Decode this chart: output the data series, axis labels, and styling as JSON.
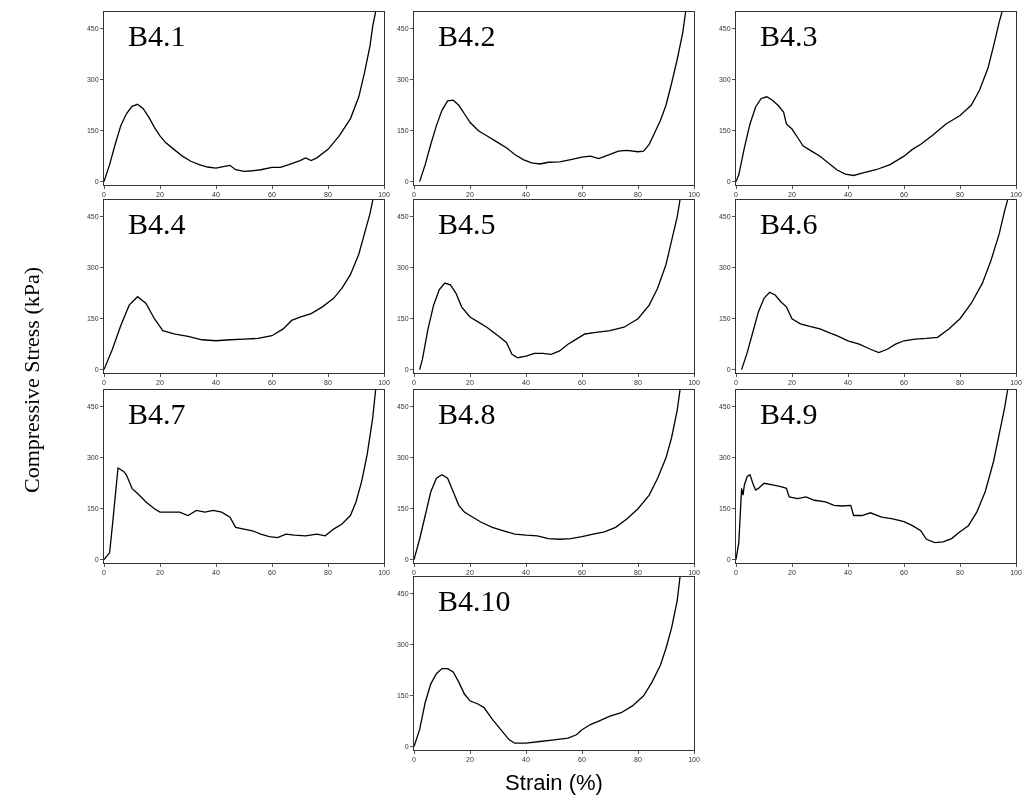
{
  "chart_data": [
    {
      "type": "line",
      "title": "B4.1",
      "xlim": [
        0,
        100
      ],
      "ylim": [
        -10,
        500
      ],
      "xticks": [
        0,
        20,
        40,
        60,
        80,
        100
      ],
      "yticks": [
        0,
        150,
        300,
        450
      ],
      "series": [
        {
          "color": "#000000",
          "x": [
            0,
            2,
            4,
            6,
            8,
            10,
            12,
            14,
            16,
            18,
            20,
            22,
            25,
            28,
            31,
            34,
            37,
            40,
            43,
            45,
            47,
            50,
            53,
            56,
            60,
            63,
            66,
            70,
            72,
            74,
            76,
            80,
            84,
            88,
            91,
            93,
            95,
            96,
            97
          ],
          "values": [
            0,
            50,
            110,
            165,
            200,
            222,
            228,
            215,
            190,
            160,
            135,
            115,
            95,
            75,
            60,
            50,
            43,
            40,
            45,
            48,
            35,
            30,
            32,
            35,
            42,
            42,
            50,
            62,
            70,
            62,
            70,
            95,
            135,
            185,
            250,
            320,
            400,
            460,
            500
          ]
        }
      ]
    },
    {
      "type": "line",
      "title": "B4.2",
      "xlim": [
        0,
        100
      ],
      "ylim": [
        -10,
        500
      ],
      "xticks": [
        0,
        20,
        40,
        60,
        80,
        100
      ],
      "yticks": [
        0,
        150,
        300,
        450
      ],
      "series": [
        {
          "color": "#000000",
          "x": [
            2,
            4,
            6,
            8,
            10,
            12,
            14,
            16,
            18,
            20,
            23,
            26,
            30,
            33,
            36,
            39,
            42,
            45,
            48,
            52,
            56,
            60,
            63,
            66,
            70,
            73,
            76,
            80,
            82,
            84,
            86,
            88,
            90,
            92,
            94,
            96,
            97
          ],
          "values": [
            0,
            50,
            110,
            165,
            210,
            238,
            240,
            225,
            200,
            175,
            150,
            135,
            115,
            100,
            80,
            65,
            55,
            52,
            57,
            58,
            65,
            72,
            75,
            68,
            80,
            90,
            92,
            88,
            90,
            110,
            145,
            180,
            225,
            290,
            360,
            440,
            500
          ]
        }
      ]
    },
    {
      "type": "line",
      "title": "B4.3",
      "xlim": [
        0,
        100
      ],
      "ylim": [
        -10,
        500
      ],
      "xticks": [
        0,
        20,
        40,
        60,
        80,
        100
      ],
      "yticks": [
        0,
        150,
        300,
        450
      ],
      "series": [
        {
          "color": "#000000",
          "x": [
            0,
            1,
            3,
            5,
            7,
            9,
            11,
            13,
            15,
            17,
            18,
            20,
            22,
            24,
            27,
            30,
            33,
            36,
            39,
            42,
            45,
            50,
            55,
            60,
            63,
            66,
            70,
            75,
            80,
            84,
            87,
            90,
            92,
            94,
            95
          ],
          "values": [
            0,
            20,
            100,
            170,
            220,
            245,
            250,
            240,
            225,
            205,
            170,
            155,
            130,
            105,
            90,
            75,
            55,
            35,
            22,
            18,
            25,
            35,
            50,
            75,
            95,
            110,
            135,
            170,
            195,
            225,
            270,
            335,
            400,
            470,
            500
          ]
        }
      ]
    },
    {
      "type": "line",
      "title": "B4.4",
      "ylabel": "Compressive Stress (kPa)",
      "xlim": [
        0,
        100
      ],
      "ylim": [
        -10,
        500
      ],
      "xticks": [
        0,
        20,
        40,
        60,
        80,
        100
      ],
      "yticks": [
        0,
        150,
        300,
        450
      ],
      "series": [
        {
          "color": "#000000",
          "x": [
            0,
            3,
            6,
            9,
            12,
            15,
            18,
            21,
            25,
            30,
            35,
            40,
            45,
            50,
            55,
            60,
            64,
            67,
            70,
            74,
            78,
            82,
            85,
            88,
            91,
            93,
            95,
            96
          ],
          "values": [
            0,
            60,
            130,
            190,
            215,
            195,
            150,
            115,
            105,
            98,
            88,
            85,
            88,
            90,
            92,
            100,
            120,
            145,
            155,
            165,
            185,
            210,
            240,
            280,
            340,
            400,
            460,
            500
          ]
        }
      ]
    },
    {
      "type": "line",
      "title": "B4.5",
      "xlim": [
        0,
        100
      ],
      "ylim": [
        -10,
        500
      ],
      "xticks": [
        0,
        20,
        40,
        60,
        80,
        100
      ],
      "yticks": [
        0,
        150,
        300,
        450
      ],
      "series": [
        {
          "color": "#000000",
          "x": [
            2,
            3,
            5,
            7,
            9,
            11,
            13,
            15,
            17,
            20,
            23,
            26,
            30,
            33,
            35,
            37,
            40,
            43,
            46,
            49,
            52,
            55,
            58,
            61,
            65,
            70,
            75,
            80,
            84,
            87,
            90,
            92,
            94,
            95
          ],
          "values": [
            0,
            30,
            120,
            190,
            235,
            255,
            250,
            225,
            185,
            155,
            140,
            125,
            100,
            80,
            45,
            35,
            40,
            48,
            48,
            45,
            55,
            75,
            90,
            105,
            110,
            115,
            125,
            150,
            190,
            240,
            310,
            380,
            450,
            500
          ]
        }
      ]
    },
    {
      "type": "line",
      "title": "B4.6",
      "xlim": [
        0,
        100
      ],
      "ylim": [
        -10,
        500
      ],
      "xticks": [
        0,
        20,
        40,
        60,
        80,
        100
      ],
      "yticks": [
        0,
        150,
        300,
        450
      ],
      "series": [
        {
          "color": "#000000",
          "x": [
            2,
            4,
            6,
            8,
            10,
            12,
            14,
            16,
            18,
            20,
            23,
            26,
            30,
            33,
            36,
            40,
            44,
            48,
            51,
            54,
            57,
            60,
            64,
            68,
            72,
            76,
            80,
            84,
            88,
            91,
            94,
            96,
            97
          ],
          "values": [
            0,
            50,
            110,
            170,
            210,
            228,
            220,
            200,
            185,
            150,
            135,
            128,
            120,
            110,
            100,
            85,
            75,
            60,
            50,
            60,
            75,
            85,
            90,
            92,
            95,
            120,
            150,
            195,
            255,
            320,
            400,
            470,
            500
          ]
        }
      ]
    },
    {
      "type": "line",
      "title": "B4.7",
      "xlim": [
        0,
        100
      ],
      "ylim": [
        -10,
        500
      ],
      "xticks": [
        0,
        20,
        40,
        60,
        80,
        100
      ],
      "yticks": [
        0,
        150,
        300,
        450
      ],
      "series": [
        {
          "color": "#000000",
          "x": [
            0,
            2,
            3,
            5,
            7,
            8,
            10,
            12,
            15,
            18,
            20,
            24,
            27,
            30,
            33,
            36,
            39,
            42,
            45,
            47,
            50,
            53,
            56,
            59,
            62,
            65,
            68,
            72,
            76,
            79,
            82,
            85,
            88,
            90,
            92,
            94,
            96,
            97
          ],
          "values": [
            0,
            20,
            100,
            270,
            260,
            250,
            210,
            195,
            170,
            150,
            140,
            140,
            140,
            130,
            145,
            140,
            145,
            140,
            125,
            95,
            90,
            85,
            75,
            68,
            65,
            75,
            72,
            70,
            75,
            70,
            90,
            105,
            130,
            170,
            230,
            310,
            420,
            500
          ]
        }
      ]
    },
    {
      "type": "line",
      "title": "B4.8",
      "xlim": [
        0,
        100
      ],
      "ylim": [
        -10,
        500
      ],
      "xticks": [
        0,
        20,
        40,
        60,
        80,
        100
      ],
      "yticks": [
        0,
        150,
        300,
        450
      ],
      "series": [
        {
          "color": "#000000",
          "x": [
            0,
            2,
            4,
            6,
            8,
            10,
            12,
            14,
            16,
            18,
            20,
            24,
            28,
            32,
            36,
            40,
            44,
            48,
            52,
            56,
            60,
            64,
            68,
            72,
            76,
            80,
            84,
            87,
            90,
            92,
            94,
            95
          ],
          "values": [
            0,
            60,
            130,
            200,
            240,
            250,
            240,
            200,
            160,
            140,
            130,
            110,
            95,
            85,
            75,
            72,
            70,
            62,
            60,
            62,
            68,
            75,
            82,
            95,
            120,
            150,
            190,
            240,
            300,
            360,
            440,
            500
          ]
        }
      ]
    },
    {
      "type": "line",
      "title": "B4.9",
      "xlim": [
        0,
        100
      ],
      "ylim": [
        -10,
        500
      ],
      "xticks": [
        0,
        20,
        40,
        60,
        80,
        100
      ],
      "yticks": [
        0,
        150,
        300,
        450
      ],
      "series": [
        {
          "color": "#000000",
          "x": [
            0,
            1,
            2,
            2.5,
            3,
            4,
            5,
            6,
            7,
            8,
            10,
            13,
            16,
            18,
            19,
            22,
            25,
            28,
            32,
            35,
            38,
            41,
            42,
            45,
            48,
            52,
            56,
            60,
            63,
            66,
            68,
            71,
            74,
            77,
            80,
            83,
            86,
            89,
            92,
            94,
            96,
            97
          ],
          "values": [
            0,
            50,
            210,
            190,
            220,
            245,
            250,
            225,
            205,
            210,
            225,
            220,
            215,
            210,
            185,
            180,
            185,
            175,
            170,
            160,
            158,
            160,
            130,
            130,
            138,
            125,
            120,
            112,
            100,
            85,
            60,
            50,
            52,
            62,
            82,
            100,
            140,
            200,
            290,
            370,
            450,
            500
          ]
        }
      ]
    },
    {
      "type": "line",
      "title": "B4.10",
      "xlabel": "Strain (%)",
      "xlim": [
        0,
        100
      ],
      "ylim": [
        -10,
        500
      ],
      "xticks": [
        0,
        20,
        40,
        60,
        80,
        100
      ],
      "yticks": [
        0,
        150,
        300,
        450
      ],
      "series": [
        {
          "color": "#000000",
          "x": [
            0,
            2,
            4,
            6,
            8,
            10,
            12,
            14,
            16,
            18,
            20,
            23,
            25,
            28,
            31,
            34,
            36,
            40,
            45,
            50,
            55,
            58,
            60,
            63,
            66,
            70,
            74,
            78,
            82,
            85,
            88,
            90,
            92,
            94,
            95
          ],
          "values": [
            0,
            50,
            130,
            185,
            215,
            230,
            230,
            220,
            190,
            155,
            135,
            125,
            115,
            80,
            50,
            20,
            10,
            10,
            15,
            20,
            25,
            35,
            50,
            65,
            75,
            90,
            100,
            120,
            150,
            190,
            240,
            290,
            350,
            430,
            500
          ]
        }
      ]
    }
  ]
}
